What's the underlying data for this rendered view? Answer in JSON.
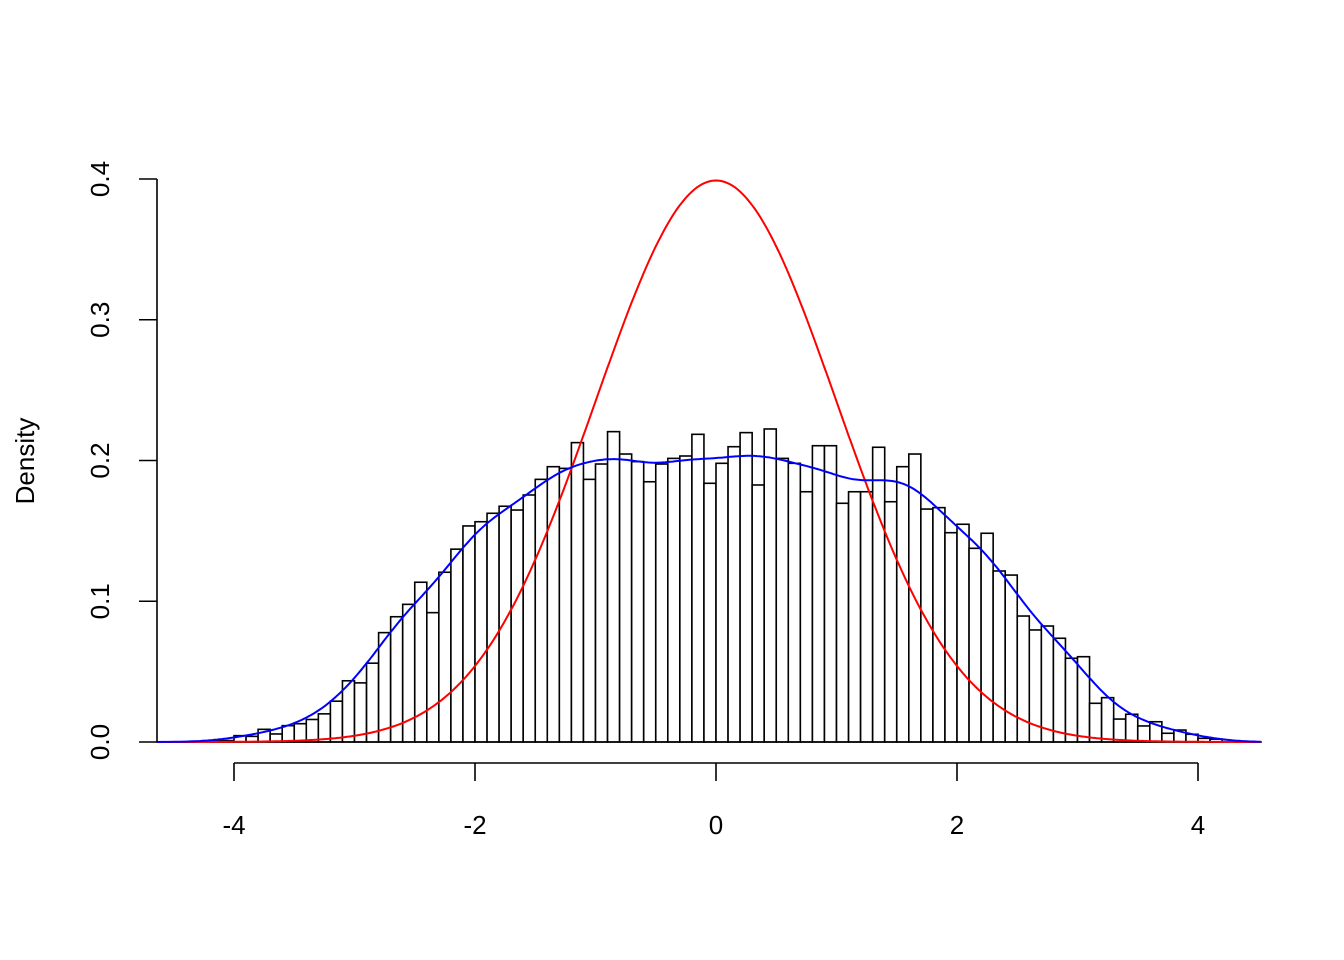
{
  "chart_data": {
    "type": "bar",
    "subtype": "histogram-with-density-curves",
    "title": "",
    "xlabel": "",
    "ylabel": "Density",
    "xlim": [
      -4.64,
      4.53
    ],
    "ylim": [
      0,
      0.4
    ],
    "grid": false,
    "x_ticks": [
      "-4",
      "-2",
      "0",
      "2",
      "4"
    ],
    "x_tick_values": [
      -4,
      -2,
      0,
      2,
      4
    ],
    "y_ticks": [
      "0.0",
      "0.1",
      "0.2",
      "0.3",
      "0.4"
    ],
    "y_tick_values": [
      0,
      0.1,
      0.2,
      0.3,
      0.4
    ],
    "bin_width": 0.1,
    "bin_starts": [
      -4.2,
      -4.1,
      -4.0,
      -3.9,
      -3.8,
      -3.7,
      -3.6,
      -3.5,
      -3.4,
      -3.3,
      -3.2,
      -3.1,
      -3.0,
      -2.9,
      -2.8,
      -2.7,
      -2.6,
      -2.5,
      -2.4,
      -2.3,
      -2.2,
      -2.1,
      -2.0,
      -1.9,
      -1.8,
      -1.7,
      -1.6,
      -1.5,
      -1.4,
      -1.3,
      -1.2,
      -1.1,
      -1.0,
      -0.9,
      -0.8,
      -0.7,
      -0.6,
      -0.5,
      -0.4,
      -0.3,
      -0.2,
      -0.1,
      0.0,
      0.1,
      0.2,
      0.3,
      0.4,
      0.5,
      0.6,
      0.7,
      0.8,
      0.9,
      1.0,
      1.1,
      1.2,
      1.3,
      1.4,
      1.5,
      1.6,
      1.7,
      1.8,
      1.9,
      2.0,
      2.1,
      2.2,
      2.3,
      2.4,
      2.5,
      2.6,
      2.7,
      2.8,
      2.9,
      3.0,
      3.1,
      3.2,
      3.3,
      3.4,
      3.5,
      3.6,
      3.7,
      3.8,
      3.9,
      4.0,
      4.1
    ],
    "values": [
      0.001,
      0.001,
      0.0045,
      0.004,
      0.009,
      0.0057,
      0.0116,
      0.013,
      0.016,
      0.02,
      0.029,
      0.0435,
      0.042,
      0.056,
      0.0777,
      0.089,
      0.0978,
      0.1135,
      0.0919,
      0.1206,
      0.137,
      0.1535,
      0.1565,
      0.1625,
      0.1675,
      0.1648,
      0.1755,
      0.1866,
      0.1956,
      0.1944,
      0.2127,
      0.1866,
      0.1975,
      0.2205,
      0.2046,
      0.1992,
      0.1849,
      0.1975,
      0.2015,
      0.2032,
      0.2186,
      0.1838,
      0.198,
      0.2098,
      0.2198,
      0.1826,
      0.2224,
      0.2015,
      0.198,
      0.1778,
      0.2105,
      0.2105,
      0.1696,
      0.1778,
      0.1778,
      0.2094,
      0.1707,
      0.1956,
      0.2046,
      0.1655,
      0.1665,
      0.1487,
      0.1547,
      0.1376,
      0.1483,
      0.1215,
      0.1186,
      0.0895,
      0.0796,
      0.0824,
      0.0737,
      0.0595,
      0.0606,
      0.0275,
      0.0315,
      0.0163,
      0.0197,
      0.0114,
      0.0144,
      0.0062,
      0.0085,
      0.0055,
      0.0026,
      0.002
    ],
    "curves": [
      {
        "kind": "normal-density",
        "mean": 0,
        "sd": 1,
        "color": "#ff0000"
      },
      {
        "kind": "kernel-density-estimate",
        "color": "#0000ff"
      }
    ],
    "bar_fill": "#ffffff",
    "bar_stroke": "#000000"
  }
}
